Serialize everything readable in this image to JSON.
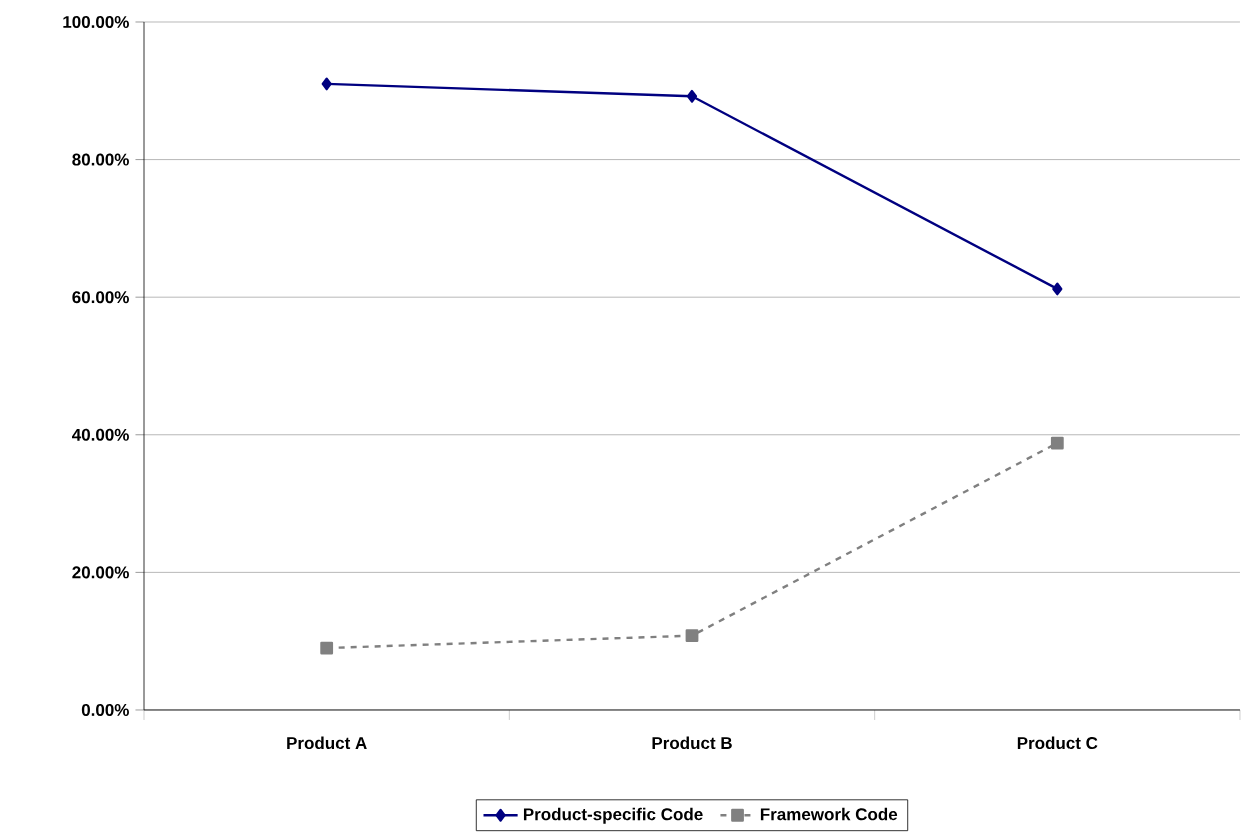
{
  "chart_data": {
    "type": "line",
    "categories": [
      "Product A",
      "Product B",
      "Product C"
    ],
    "series": [
      {
        "name": "Product-specific Code",
        "color": "#000080",
        "values": [
          91,
          89.2,
          61.2
        ],
        "marker": "diamond",
        "line_style": "solid"
      },
      {
        "name": "Framework Code",
        "color": "#808080",
        "values": [
          9,
          10.8,
          38.8
        ],
        "marker": "square",
        "line_style": "dashed"
      }
    ],
    "ylim": [
      0,
      100
    ],
    "yticks": [
      {
        "value": 0,
        "label": "0.00%"
      },
      {
        "value": 20,
        "label": "20.00%"
      },
      {
        "value": 40,
        "label": "40.00%"
      },
      {
        "value": 60,
        "label": "60.00%"
      },
      {
        "value": 80,
        "label": "80.00%"
      },
      {
        "value": 100,
        "label": "100.00%"
      }
    ],
    "grid": "y",
    "legend": "bottom"
  }
}
